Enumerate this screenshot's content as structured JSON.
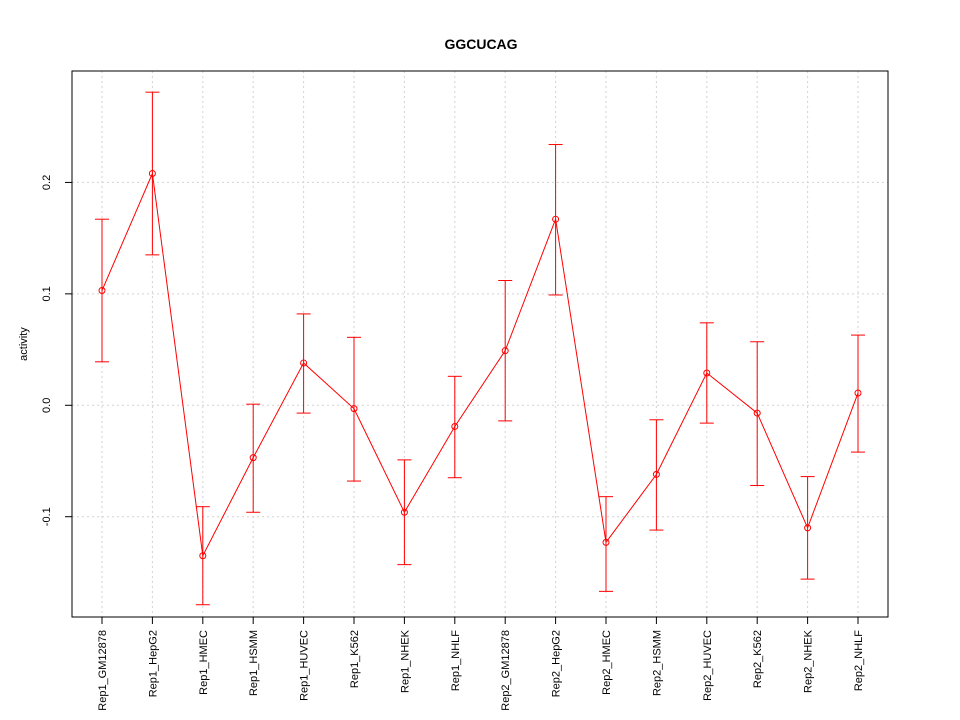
{
  "chart_data": {
    "type": "line",
    "title": "GGCUCAG",
    "xlabel": "",
    "ylabel": "activity",
    "categories": [
      "Rep1_GM12878",
      "Rep1_HepG2",
      "Rep1_HMEC",
      "Rep1_HSMM",
      "Rep1_HUVEC",
      "Rep1_K562",
      "Rep1_NHEK",
      "Rep1_NHLF",
      "Rep2_GM12878",
      "Rep2_HepG2",
      "Rep2_HMEC",
      "Rep2_HSMM",
      "Rep2_HUVEC",
      "Rep2_K562",
      "Rep2_NHEK",
      "Rep2_NHLF"
    ],
    "series": [
      {
        "name": "activity",
        "color": "#ff0000",
        "values": [
          0.103,
          0.208,
          -0.135,
          -0.047,
          0.038,
          -0.003,
          -0.096,
          -0.019,
          0.049,
          0.167,
          -0.123,
          -0.062,
          0.029,
          -0.007,
          -0.11,
          0.011
        ],
        "err_low": [
          0.039,
          0.135,
          -0.179,
          -0.096,
          -0.007,
          -0.068,
          -0.143,
          -0.065,
          -0.014,
          0.099,
          -0.167,
          -0.112,
          -0.016,
          -0.072,
          -0.156,
          -0.042
        ],
        "err_high": [
          0.167,
          0.281,
          -0.091,
          0.001,
          0.082,
          0.061,
          -0.049,
          0.026,
          0.112,
          0.234,
          -0.082,
          -0.013,
          0.074,
          0.057,
          -0.064,
          0.063
        ]
      }
    ],
    "ylim": [
      -0.19,
      0.3
    ],
    "yticks": [
      -0.1,
      0.0,
      0.1,
      0.2
    ],
    "ytick_labels": [
      "-0.1",
      "0.0",
      "0.1",
      "0.2"
    ],
    "grid": true
  }
}
